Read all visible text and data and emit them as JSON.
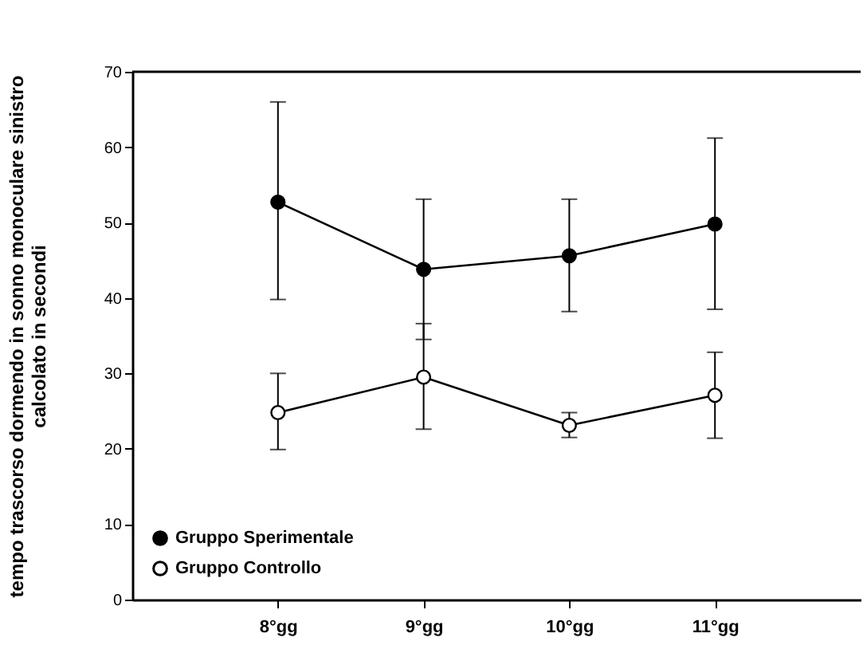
{
  "chart_data": {
    "type": "line",
    "ylabel": "tempo trascorso dormendo in sonno monoculare sinistro\ncalcolato in secondi",
    "categories": [
      "8°gg",
      "9°gg",
      "10°gg",
      "11°gg"
    ],
    "series": [
      {
        "name": "Gruppo Sperimentale",
        "color": "#000000",
        "values": [
          52.7,
          43.8,
          45.6,
          49.8
        ],
        "errors": [
          [
            39.8,
            66.0
          ],
          [
            34.5,
            53.1
          ],
          [
            38.2,
            53.1
          ],
          [
            38.5,
            61.2
          ]
        ]
      },
      {
        "name": "Gruppo Controllo",
        "color": "#000000",
        "values": [
          24.8,
          29.5,
          23.1,
          27.1
        ],
        "errors": [
          [
            19.9,
            30.0
          ],
          [
            22.6,
            36.6
          ],
          [
            21.5,
            24.8
          ],
          [
            21.4,
            32.8
          ]
        ]
      }
    ],
    "ylim": [
      0,
      70
    ],
    "yticks": [
      0,
      10,
      20,
      30,
      40,
      50,
      60,
      70
    ],
    "grid": false,
    "legend": "bottom left",
    "marker": "circle",
    "line_style": "solid"
  }
}
